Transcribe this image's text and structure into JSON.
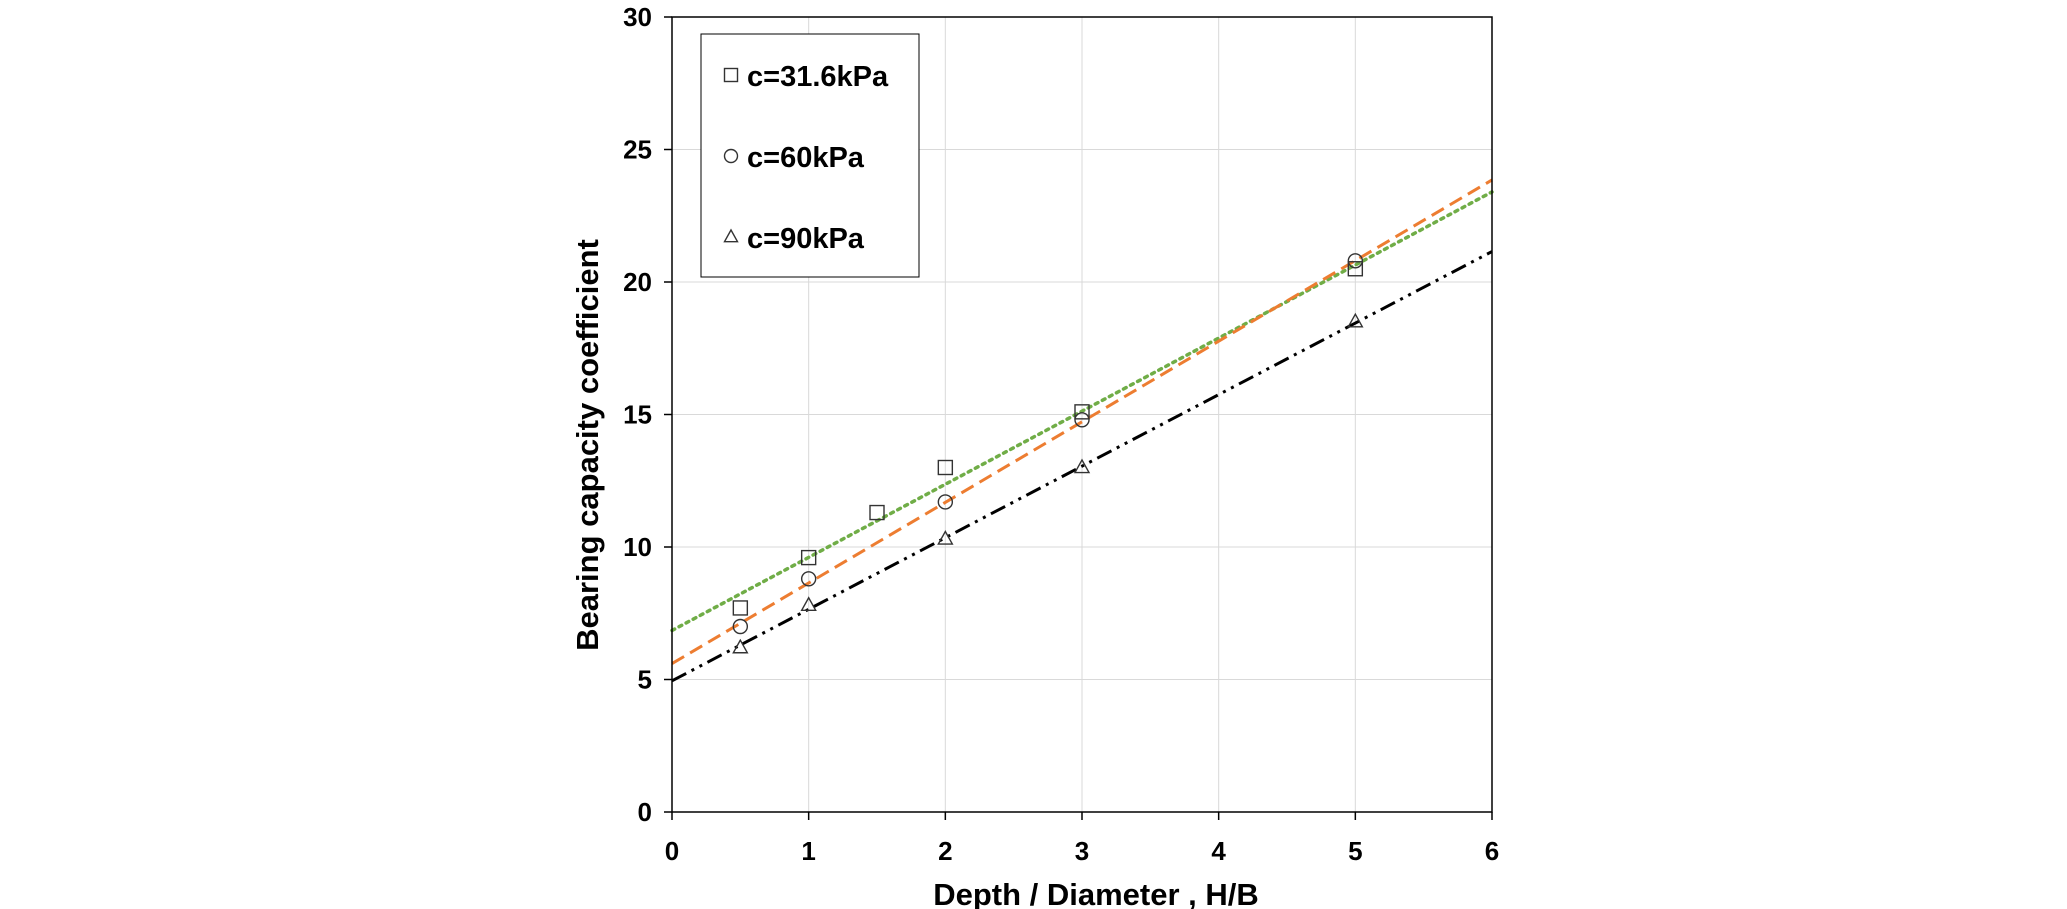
{
  "chart_data": {
    "type": "scatter",
    "xlabel": "Depth / Diameter , H/B",
    "ylabel": "Bearing capacity coefficient",
    "xlim": [
      0,
      6
    ],
    "ylim": [
      0,
      30
    ],
    "xticks": [
      0,
      1,
      2,
      3,
      4,
      5,
      6
    ],
    "yticks": [
      0,
      5,
      10,
      15,
      20,
      25,
      30
    ],
    "grid": true,
    "legend_position": "top-left",
    "series": [
      {
        "name": "c=31.6kPa",
        "marker": "square",
        "x": [
          0.5,
          1,
          1.5,
          2,
          3,
          5
        ],
        "y": [
          7.7,
          9.6,
          11.3,
          13.0,
          15.1,
          20.5
        ],
        "trendline": {
          "style": "dotted",
          "color": "#70ad47",
          "from": [
            0,
            6.85
          ],
          "to": [
            6,
            23.4
          ]
        }
      },
      {
        "name": "c=60kPa",
        "marker": "circle",
        "x": [
          0.5,
          1,
          2,
          3,
          5
        ],
        "y": [
          7.0,
          8.8,
          11.7,
          14.8,
          20.8
        ],
        "trendline": {
          "style": "dashed",
          "color": "#ed7d31",
          "from": [
            0,
            5.6
          ],
          "to": [
            6,
            23.85
          ]
        }
      },
      {
        "name": "c=90kPa",
        "marker": "triangle",
        "x": [
          0.5,
          1,
          2,
          3,
          5
        ],
        "y": [
          6.2,
          7.8,
          10.3,
          13.0,
          18.5
        ],
        "trendline": {
          "style": "dash-dot-dot",
          "color": "#000000",
          "from": [
            0,
            4.95
          ],
          "to": [
            6,
            21.15
          ]
        }
      }
    ]
  }
}
